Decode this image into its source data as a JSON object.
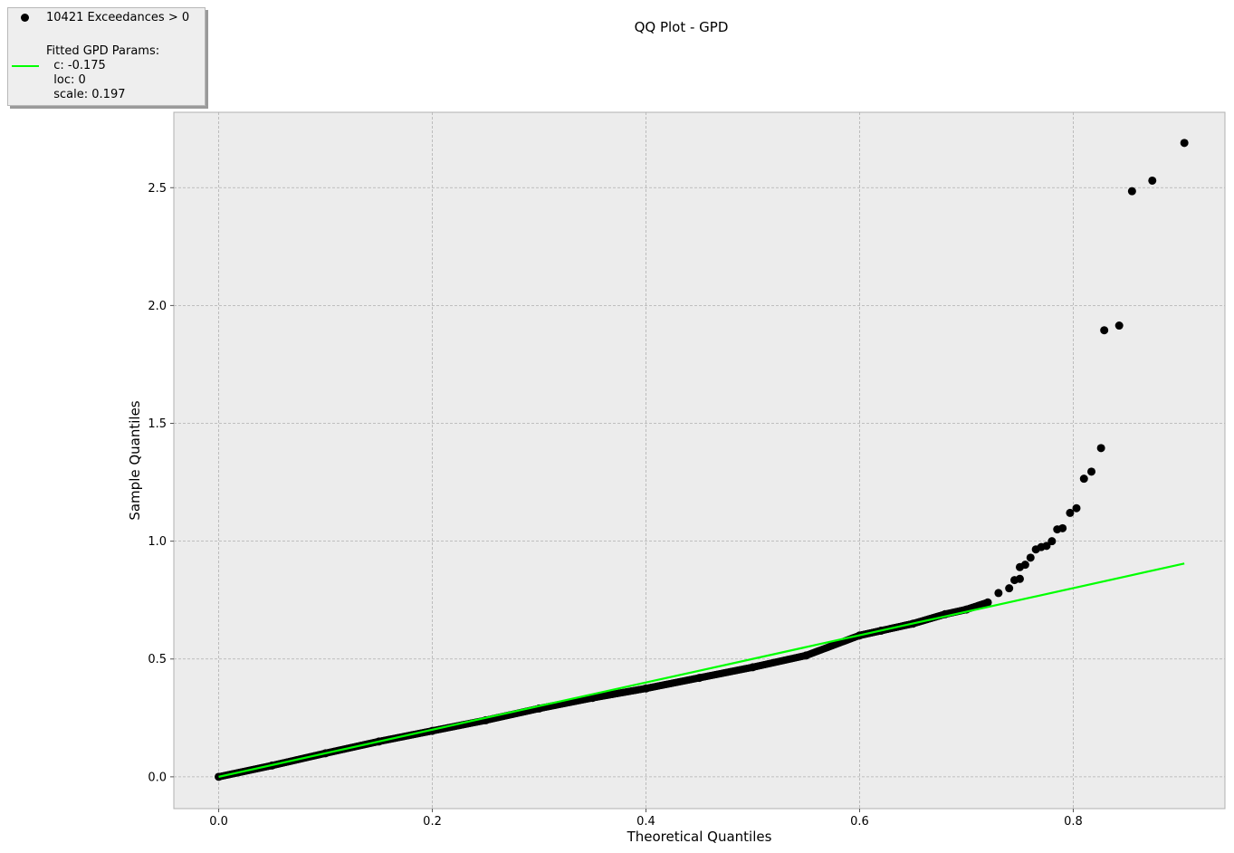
{
  "chart_data": {
    "type": "scatter",
    "title": "QQ Plot - GPD",
    "xlabel": "Theoretical Quantiles",
    "ylabel": "Sample Quantiles",
    "xlim": [
      -0.042,
      0.942
    ],
    "ylim": [
      -0.135,
      2.82
    ],
    "xticks": [
      0.0,
      0.2,
      0.4,
      0.6,
      0.8
    ],
    "xtick_labels": [
      "0.0",
      "0.2",
      "0.4",
      "0.6",
      "0.8"
    ],
    "yticks": [
      0.0,
      0.5,
      1.0,
      1.5,
      2.0,
      2.5
    ],
    "ytick_labels": [
      "0.0",
      "0.5",
      "1.0",
      "1.5",
      "2.0",
      "2.5"
    ],
    "grid": true,
    "background": "#ececec",
    "legend_placement": "upper-left (outside axes)",
    "series": [
      {
        "name": "10421 Exceedances > 0",
        "kind": "scatter",
        "color": "#000000",
        "points": [
          [
            0.0,
            0.0
          ],
          [
            0.05,
            0.048
          ],
          [
            0.1,
            0.1
          ],
          [
            0.15,
            0.15
          ],
          [
            0.2,
            0.195
          ],
          [
            0.25,
            0.24
          ],
          [
            0.3,
            0.29
          ],
          [
            0.35,
            0.335
          ],
          [
            0.4,
            0.375
          ],
          [
            0.45,
            0.42
          ],
          [
            0.5,
            0.465
          ],
          [
            0.55,
            0.515
          ],
          [
            0.6,
            0.6
          ],
          [
            0.62,
            0.62
          ],
          [
            0.65,
            0.65
          ],
          [
            0.68,
            0.69
          ],
          [
            0.7,
            0.71
          ],
          [
            0.72,
            0.74
          ],
          [
            0.73,
            0.78
          ],
          [
            0.74,
            0.8
          ],
          [
            0.745,
            0.835
          ],
          [
            0.75,
            0.84
          ],
          [
            0.75,
            0.89
          ],
          [
            0.755,
            0.9
          ],
          [
            0.76,
            0.93
          ],
          [
            0.765,
            0.965
          ],
          [
            0.77,
            0.975
          ],
          [
            0.775,
            0.98
          ],
          [
            0.78,
            1.0
          ],
          [
            0.785,
            1.05
          ],
          [
            0.79,
            1.055
          ],
          [
            0.797,
            1.12
          ],
          [
            0.803,
            1.14
          ],
          [
            0.81,
            1.265
          ],
          [
            0.817,
            1.295
          ],
          [
            0.826,
            1.395
          ],
          [
            0.829,
            1.895
          ],
          [
            0.843,
            1.915
          ],
          [
            0.855,
            2.485
          ],
          [
            0.874,
            2.53
          ],
          [
            0.904,
            2.69
          ]
        ]
      },
      {
        "name": "Fitted GPD Params:\n  c: -0.175\n  loc: 0\n  scale: 0.197",
        "kind": "line",
        "color": "#00ff00",
        "x": [
          0.0,
          0.904
        ],
        "y": [
          0.0,
          0.905
        ]
      }
    ]
  },
  "legend": {
    "scatter_label": "10421 Exceedances > 0",
    "line_label": "Fitted GPD Params:\n  c: -0.175\n  loc: 0\n  scale: 0.197"
  }
}
